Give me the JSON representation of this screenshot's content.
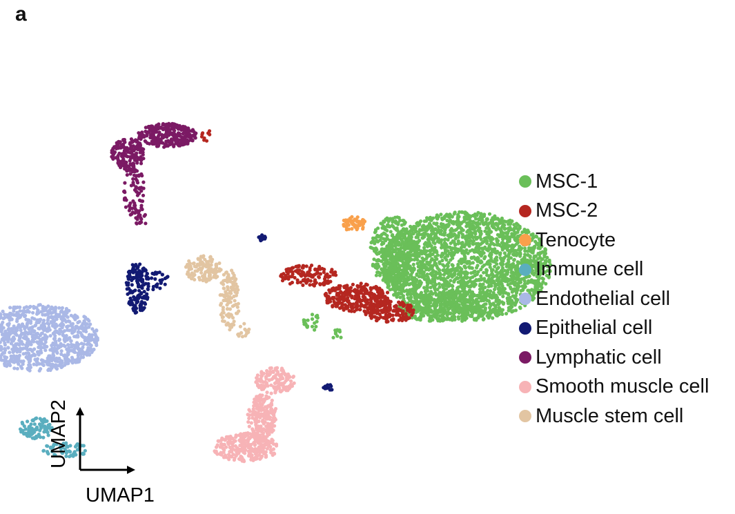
{
  "panel_label": "a",
  "chart_data": {
    "type": "scatter",
    "title": "",
    "xlabel": "UMAP1",
    "ylabel": "UMAP2",
    "axes_style": "arrows",
    "legend_placement": "right",
    "grid": false,
    "series": [
      {
        "name": "MSC-1",
        "color": "#6abf59",
        "clusters": [
          {
            "cx": 11.8,
            "cy": 9.1,
            "rx": 2.6,
            "ry": 2.3,
            "n": 2300
          },
          {
            "cx": 9.6,
            "cy": 9.7,
            "rx": 0.7,
            "ry": 1.5,
            "n": 350
          },
          {
            "cx": 10.9,
            "cy": 7.4,
            "rx": 1.2,
            "ry": 0.6,
            "n": 250
          },
          {
            "cx": 7.1,
            "cy": 6.8,
            "rx": 0.25,
            "ry": 0.4,
            "n": 22
          },
          {
            "cx": 7.9,
            "cy": 6.2,
            "rx": 0.2,
            "ry": 0.25,
            "n": 10
          }
        ]
      },
      {
        "name": "MSC-2",
        "color": "#b52720",
        "clusters": [
          {
            "cx": 7.0,
            "cy": 8.7,
            "rx": 0.9,
            "ry": 0.45,
            "n": 130
          },
          {
            "cx": 8.5,
            "cy": 7.8,
            "rx": 1.0,
            "ry": 0.6,
            "n": 280
          },
          {
            "cx": 9.5,
            "cy": 7.2,
            "rx": 0.8,
            "ry": 0.45,
            "n": 160
          },
          {
            "cx": 3.9,
            "cy": 14.6,
            "rx": 0.15,
            "ry": 0.25,
            "n": 10
          }
        ]
      },
      {
        "name": "Tenocyte",
        "color": "#f9a04b",
        "clusters": [
          {
            "cx": 8.4,
            "cy": 10.9,
            "rx": 0.35,
            "ry": 0.35,
            "n": 55
          }
        ]
      },
      {
        "name": "Immune cell",
        "color": "#5aaebf",
        "clusters": [
          {
            "cx": -1.3,
            "cy": 2.3,
            "rx": 0.5,
            "ry": 0.45,
            "n": 90
          },
          {
            "cx": -0.4,
            "cy": 1.4,
            "rx": 0.7,
            "ry": 0.3,
            "n": 60
          }
        ]
      },
      {
        "name": "Endothelial cell",
        "color": "#aab8e6",
        "clusters": [
          {
            "cx": -1.3,
            "cy": 6.1,
            "rx": 1.9,
            "ry": 1.4,
            "n": 950
          }
        ]
      },
      {
        "name": "Epithelial cell",
        "color": "#121a73",
        "clusters": [
          {
            "cx": 1.8,
            "cy": 8.2,
            "rx": 0.35,
            "ry": 1.1,
            "n": 150
          },
          {
            "cx": 2.4,
            "cy": 8.5,
            "rx": 0.35,
            "ry": 0.4,
            "n": 25
          },
          {
            "cx": 5.6,
            "cy": 10.3,
            "rx": 0.12,
            "ry": 0.15,
            "n": 15
          },
          {
            "cx": 7.6,
            "cy": 4.0,
            "rx": 0.15,
            "ry": 0.15,
            "n": 12
          }
        ]
      },
      {
        "name": "Lymphatic cell",
        "color": "#7b1a64",
        "clusters": [
          {
            "cx": 2.7,
            "cy": 14.6,
            "rx": 0.9,
            "ry": 0.5,
            "n": 280
          },
          {
            "cx": 1.5,
            "cy": 13.8,
            "rx": 0.5,
            "ry": 0.7,
            "n": 180
          },
          {
            "cx": 1.7,
            "cy": 12.2,
            "rx": 0.35,
            "ry": 1.0,
            "n": 70
          },
          {
            "cx": 1.9,
            "cy": 11.1,
            "rx": 0.2,
            "ry": 0.35,
            "n": 15
          }
        ]
      },
      {
        "name": "Smooth muscle cell",
        "color": "#f7b3b6",
        "clusters": [
          {
            "cx": 6.0,
            "cy": 4.3,
            "rx": 0.6,
            "ry": 0.55,
            "n": 140
          },
          {
            "cx": 5.6,
            "cy": 2.8,
            "rx": 0.45,
            "ry": 0.9,
            "n": 200
          },
          {
            "cx": 5.1,
            "cy": 1.5,
            "rx": 1.0,
            "ry": 0.6,
            "n": 260
          }
        ]
      },
      {
        "name": "Muscle stem cell",
        "color": "#e2c5a2",
        "clusters": [
          {
            "cx": 3.8,
            "cy": 9.0,
            "rx": 0.55,
            "ry": 0.55,
            "n": 120
          },
          {
            "cx": 4.6,
            "cy": 7.7,
            "rx": 0.3,
            "ry": 1.3,
            "n": 110
          },
          {
            "cx": 5.0,
            "cy": 6.4,
            "rx": 0.2,
            "ry": 0.3,
            "n": 14
          }
        ]
      }
    ]
  }
}
